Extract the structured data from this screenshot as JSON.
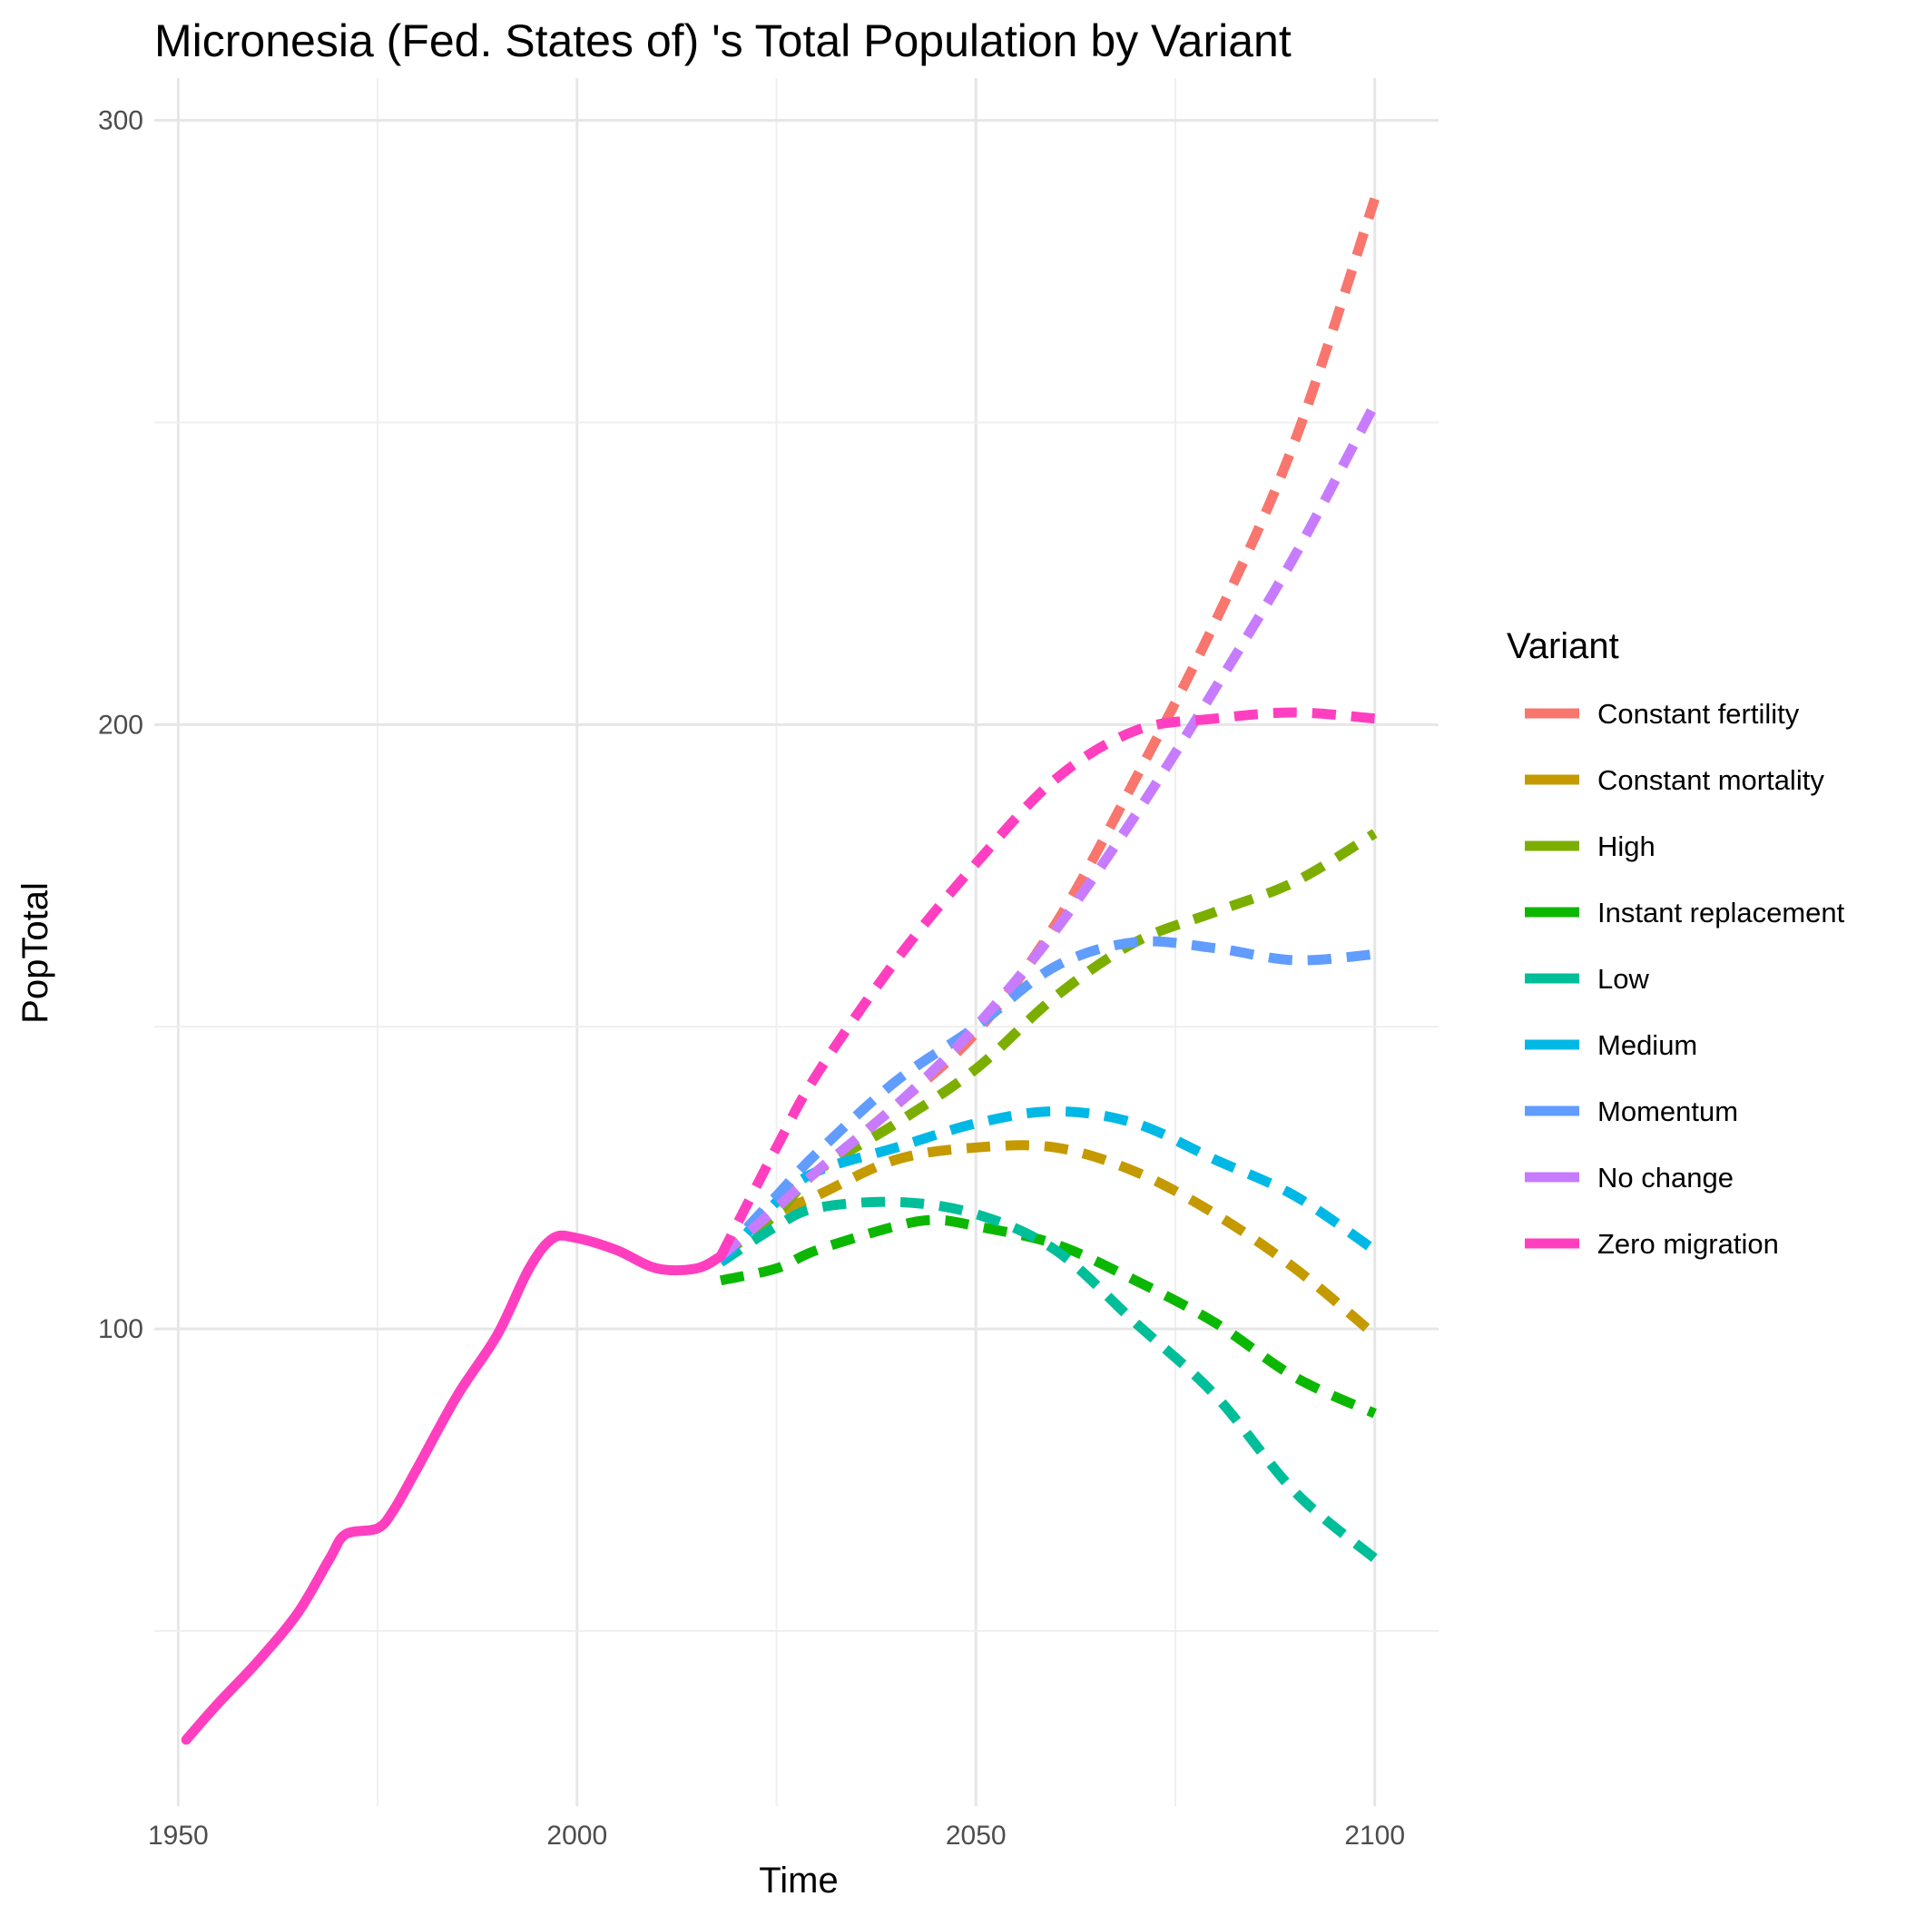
{
  "chart_data": {
    "type": "line",
    "title": "Micronesia (Fed. States of) 's Total Population by Variant",
    "xlabel": "Time",
    "ylabel": "PopTotal",
    "xlim": [
      1947,
      2108
    ],
    "ylim": [
      21,
      307
    ],
    "x_ticks": [
      1950,
      2000,
      2050,
      2100
    ],
    "y_ticks": [
      100,
      200,
      300
    ],
    "grid": true,
    "legend": {
      "title": "Variant",
      "position": "right"
    },
    "historical": {
      "name": "Zero migration",
      "color": "#FF3FC0",
      "points": [
        [
          1951,
          32
        ],
        [
          1955,
          38
        ],
        [
          1960,
          45
        ],
        [
          1965,
          53
        ],
        [
          1969,
          62
        ],
        [
          1971,
          66
        ],
        [
          1975,
          67
        ],
        [
          1977,
          70
        ],
        [
          1980,
          77
        ],
        [
          1985,
          89
        ],
        [
          1990,
          99
        ],
        [
          1994,
          110
        ],
        [
          1997,
          115
        ],
        [
          2000,
          115
        ],
        [
          2005,
          113
        ],
        [
          2010,
          110
        ],
        [
          2015,
          110
        ],
        [
          2018,
          112
        ]
      ]
    },
    "series": [
      {
        "name": "Constant fertility",
        "color": "#F8766D",
        "points": [
          [
            2018,
            112
          ],
          [
            2025,
            121
          ],
          [
            2030,
            126
          ],
          [
            2040,
            137
          ],
          [
            2050,
            149
          ],
          [
            2060,
            167
          ],
          [
            2070,
            191
          ],
          [
            2080,
            217
          ],
          [
            2090,
            247
          ],
          [
            2100,
            287
          ]
        ]
      },
      {
        "name": "Constant mortality",
        "color": "#C49A00",
        "points": [
          [
            2018,
            112
          ],
          [
            2025,
            119
          ],
          [
            2030,
            122
          ],
          [
            2040,
            128
          ],
          [
            2050,
            130
          ],
          [
            2060,
            130
          ],
          [
            2070,
            126
          ],
          [
            2080,
            119
          ],
          [
            2090,
            110
          ],
          [
            2100,
            99
          ]
        ]
      },
      {
        "name": "High",
        "color": "#7CAE00",
        "points": [
          [
            2018,
            112
          ],
          [
            2025,
            119
          ],
          [
            2030,
            126
          ],
          [
            2040,
            134
          ],
          [
            2050,
            143
          ],
          [
            2060,
            155
          ],
          [
            2070,
            164
          ],
          [
            2080,
            169
          ],
          [
            2090,
            174
          ],
          [
            2100,
            182
          ]
        ]
      },
      {
        "name": "Instant replacement",
        "color": "#0CB702",
        "points": [
          [
            2018,
            108
          ],
          [
            2025,
            110
          ],
          [
            2030,
            113
          ],
          [
            2040,
            117
          ],
          [
            2045,
            118
          ],
          [
            2050,
            117
          ],
          [
            2060,
            114
          ],
          [
            2070,
            108
          ],
          [
            2080,
            101
          ],
          [
            2090,
            92
          ],
          [
            2100,
            86
          ]
        ]
      },
      {
        "name": "Low",
        "color": "#00BE99",
        "points": [
          [
            2018,
            111
          ],
          [
            2025,
            117
          ],
          [
            2030,
            120
          ],
          [
            2040,
            121
          ],
          [
            2050,
            119
          ],
          [
            2060,
            113
          ],
          [
            2070,
            101
          ],
          [
            2080,
            89
          ],
          [
            2090,
            73
          ],
          [
            2100,
            62
          ]
        ]
      },
      {
        "name": "Medium",
        "color": "#00B8E5",
        "points": [
          [
            2018,
            111
          ],
          [
            2025,
            121
          ],
          [
            2030,
            126
          ],
          [
            2040,
            130
          ],
          [
            2050,
            134
          ],
          [
            2060,
            136
          ],
          [
            2070,
            134
          ],
          [
            2080,
            128
          ],
          [
            2090,
            122
          ],
          [
            2100,
            113
          ]
        ]
      },
      {
        "name": "Momentum",
        "color": "#619CFF",
        "points": [
          [
            2018,
            112
          ],
          [
            2025,
            122
          ],
          [
            2030,
            129
          ],
          [
            2040,
            141
          ],
          [
            2050,
            150
          ],
          [
            2060,
            160
          ],
          [
            2070,
            164
          ],
          [
            2080,
            163
          ],
          [
            2090,
            161
          ],
          [
            2100,
            162
          ]
        ]
      },
      {
        "name": "No change",
        "color": "#C77CFF",
        "points": [
          [
            2018,
            112
          ],
          [
            2025,
            120
          ],
          [
            2030,
            126
          ],
          [
            2040,
            137
          ],
          [
            2050,
            150
          ],
          [
            2060,
            166
          ],
          [
            2070,
            185
          ],
          [
            2080,
            206
          ],
          [
            2090,
            228
          ],
          [
            2100,
            253
          ]
        ]
      },
      {
        "name": "Zero migration",
        "color": "#FF3FC0",
        "points": [
          [
            2018,
            112
          ],
          [
            2025,
            130
          ],
          [
            2030,
            142
          ],
          [
            2040,
            161
          ],
          [
            2050,
            177
          ],
          [
            2060,
            191
          ],
          [
            2070,
            199
          ],
          [
            2080,
            201
          ],
          [
            2090,
            202
          ],
          [
            2100,
            201
          ]
        ]
      }
    ]
  }
}
